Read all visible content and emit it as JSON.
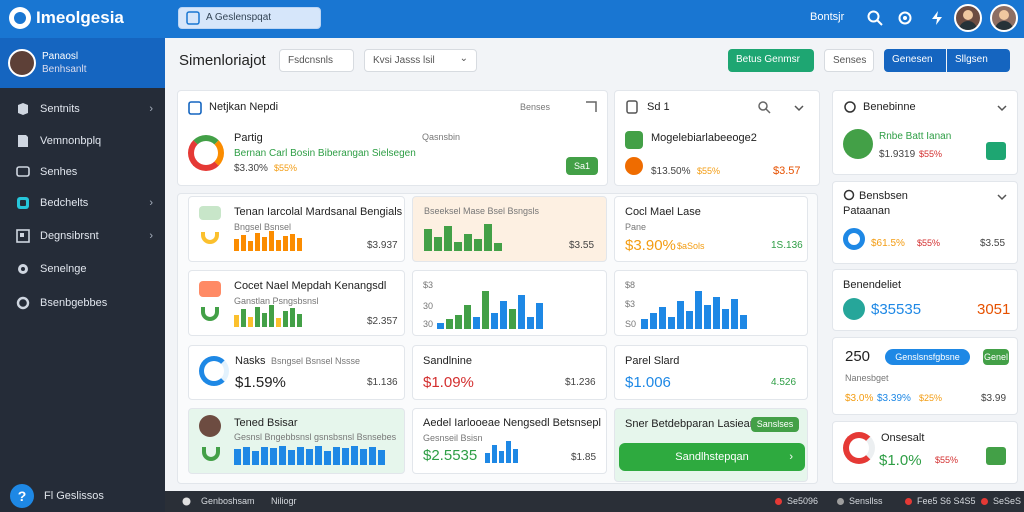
{
  "app": {
    "title": "Imeolgesia"
  },
  "search": {
    "text": "A Geslenspqat"
  },
  "topbar": {
    "link": "Bontsjr"
  },
  "user": {
    "name": "Panaosl",
    "subtitle": "Benhsanlt"
  },
  "sidebar": {
    "items": [
      {
        "label": "Sentnits",
        "icon": "layers-icon",
        "chev": "›"
      },
      {
        "label": "Vemnonbplq",
        "icon": "document-icon",
        "chev": ""
      },
      {
        "label": "Senhes",
        "icon": "chat-icon",
        "chev": ""
      },
      {
        "label": "Bedchelts",
        "icon": "square-icon",
        "chev": "›"
      },
      {
        "label": "Degnsibrsnt",
        "icon": "image-icon",
        "chev": "›"
      },
      {
        "label": "Senelnge",
        "icon": "gear-icon",
        "chev": ""
      },
      {
        "label": "Bsenbgebbes",
        "icon": "circle-icon",
        "chev": ""
      }
    ],
    "help_label": "Fl Geslissos",
    "help_icon": "?"
  },
  "page": {
    "title": "Simenloriajot"
  },
  "toolbar": {
    "filter1": "Fsdcnsnls",
    "filter2": "Kvsi Jasss lsil",
    "filter2_chev": "⌄",
    "action_green": "Betus Genmsr",
    "action_plain": "Senses",
    "action_blue1": "Genesen",
    "action_blue2": "Sllgsen",
    "accent_green": "#1ea672",
    "accent_blue": "#1565c0"
  },
  "cards": {
    "main": {
      "title": "Netjkan Nepdi",
      "legend_label": "Benses",
      "item_title": "Partig",
      "item_subtitle": "Bernan Carl Bosin Biberangan Sielsegen",
      "item_value": "$3.30%",
      "item_delta": "$55%",
      "side_label": "Qasnsbin",
      "button": "Sa1"
    },
    "c2": {
      "title": "Sd 1",
      "item_title": "Mogelebiarlabeeoge2",
      "item_value": "$13.50%",
      "item_delta": "$55%",
      "item_right": "$3.57"
    },
    "c3": {
      "title": "Tenan Iarcolal Mardsanal Bengials",
      "sub": "Bngsel Bsnsel",
      "value": "$3.937"
    },
    "c4": {
      "title": "Bseeksel Mase Bsel Bsngsls",
      "value": "$3.55"
    },
    "c5": {
      "title": "Cocl Mael Lase",
      "sub": "Pane",
      "value": "$3.90%",
      "delta": "$aSols",
      "right": "1S.136"
    },
    "c6": {
      "title": "Cocet Nael Mepdah Kenangsdl",
      "sub": "Ganstlan Psngsbsnsl",
      "value": "$2.357"
    },
    "c7": {
      "y1": "$3",
      "y2": "30",
      "y3": "30"
    },
    "c8": {
      "y1": "$8",
      "y2": "$3",
      "y3": "S0"
    },
    "c9": {
      "title": "Nasks",
      "sub": "Bsngsel Bsnsel Nssse",
      "value": "$1.59%",
      "right": "$1.136"
    },
    "c10": {
      "title": "Sandlnine",
      "value": "$1.09%",
      "right": "$1.236"
    },
    "c11": {
      "title": "Parel Slard",
      "value": "$1.006",
      "right": "4.526"
    },
    "c12": {
      "title": "Tened Bsisar",
      "sub": "Gesnsl Bngebbsnsl gsnsbsnsl Bsnsebes",
      "value": ""
    },
    "c13": {
      "title": "Aedel Iarlooeae Nengsedl Betsnsepl",
      "sub": "Gesnseil Bsisn",
      "value": "$2.5535",
      "right": "$1.85"
    },
    "c14": {
      "title": "Sner Betdebparan Lasiean",
      "chip": "Sanslses",
      "button": "Sandlhstepqan",
      "button_chev": "›"
    },
    "r1": {
      "title": "Benebinne",
      "item_title": "Rnbe Batt Ianan",
      "value": "$1.9319",
      "delta": "$55%"
    },
    "r2": {
      "title": "Bensbsen",
      "sub": "Pataanan",
      "value": "$61.5%",
      "delta": "$55%",
      "right": "$3.55"
    },
    "r3": {
      "title": "Benendeliet",
      "value": "$35535",
      "right": "3051"
    },
    "r4": {
      "num": "250",
      "chip": "Genslsnsfgbsne",
      "chip2": "Genel",
      "sub": "Nanesbget",
      "value": "$3.0%",
      "mid": "$3.39%",
      "delta": "$25%",
      "right": "$3.99"
    },
    "r5": {
      "title": "Onsesalt",
      "value": "$1.0%",
      "delta": "$55%"
    }
  },
  "footer": {
    "left1": "Genboshsam",
    "left2": "Niliogr",
    "s1": "Se5096",
    "s2": "Sensllss",
    "s3": "Fee5 S6 S4S5",
    "s4": "SeSeS"
  }
}
